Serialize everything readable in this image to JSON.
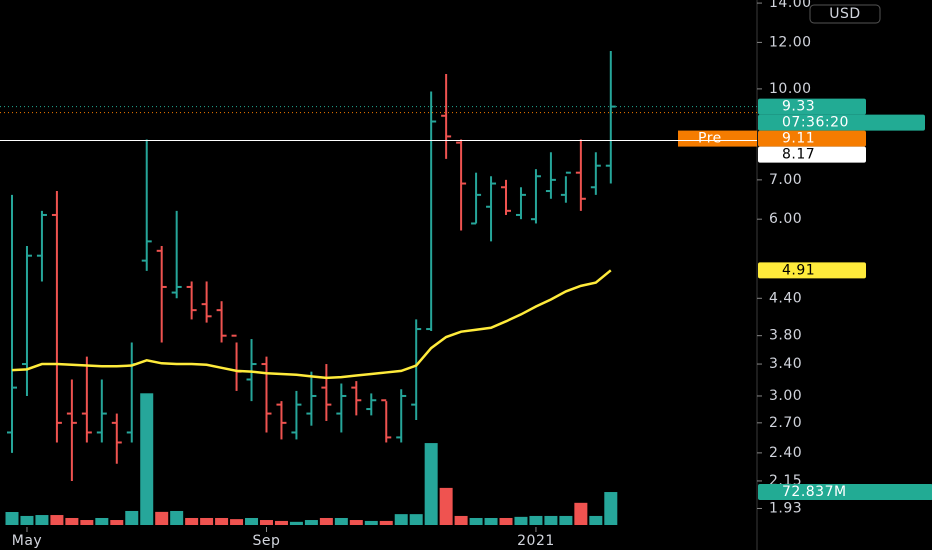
{
  "chart_data": {
    "type": "ohlc",
    "currency": "USD",
    "log_scale": true,
    "up_color": "#26a69a",
    "down_color": "#ef5350",
    "categories": [
      null,
      "May",
      null,
      null,
      null,
      null,
      null,
      null,
      null,
      null,
      null,
      null,
      null,
      null,
      null,
      null,
      null,
      "Sep",
      null,
      null,
      null,
      null,
      null,
      null,
      null,
      null,
      null,
      null,
      null,
      null,
      null,
      null,
      null,
      null,
      null,
      "2021",
      null,
      null,
      null,
      null,
      null
    ],
    "open": [
      2.6,
      3.4,
      5.2,
      6.1,
      2.8,
      2.8,
      2.6,
      2.7,
      2.6,
      5.1,
      5.3,
      4.5,
      4.6,
      4.3,
      4.2,
      3.8,
      3.2,
      3.4,
      2.9,
      2.6,
      2.8,
      3.1,
      2.8,
      3.1,
      2.85,
      2.95,
      2.55,
      2.9,
      3.9,
      9.0,
      8.1,
      5.9,
      6.3,
      6.8,
      6.1,
      6.0,
      6.7,
      6.6,
      7.2,
      6.8,
      7.4
    ],
    "high": [
      6.6,
      5.4,
      6.2,
      6.7,
      3.2,
      3.5,
      3.2,
      2.8,
      3.7,
      8.2,
      5.4,
      6.2,
      4.7,
      4.7,
      4.35,
      3.7,
      3.75,
      3.5,
      2.94,
      3.06,
      3.3,
      3.4,
      3.15,
      3.18,
      3.03,
      2.94,
      3.08,
      4.05,
      9.9,
      10.6,
      8.2,
      7.2,
      7.1,
      7.0,
      6.8,
      7.3,
      7.8,
      7.1,
      8.2,
      7.8,
      11.6
    ],
    "low": [
      2.4,
      3.0,
      4.7,
      2.5,
      2.15,
      2.5,
      2.5,
      2.3,
      2.5,
      4.9,
      3.7,
      4.4,
      4.05,
      4.0,
      3.7,
      3.06,
      2.94,
      2.6,
      2.53,
      2.53,
      2.67,
      2.72,
      2.6,
      2.78,
      2.78,
      2.5,
      2.5,
      2.73,
      3.87,
      7.6,
      5.74,
      5.9,
      5.5,
      6.1,
      6.0,
      5.9,
      6.5,
      6.4,
      6.2,
      6.6,
      6.9
    ],
    "close": [
      3.1,
      5.2,
      6.1,
      2.7,
      2.7,
      2.6,
      2.8,
      2.5,
      3.4,
      5.5,
      4.6,
      4.6,
      4.2,
      4.1,
      3.8,
      3.3,
      3.4,
      2.8,
      2.7,
      2.9,
      3.0,
      2.9,
      3.0,
      2.95,
      2.95,
      2.55,
      3.0,
      3.9,
      8.8,
      8.3,
      6.9,
      6.6,
      6.9,
      6.2,
      6.6,
      7.1,
      7.0,
      7.2,
      6.5,
      7.4,
      9.33
    ],
    "moving_average": {
      "color": "#ffeb3b",
      "values": [
        3.32,
        3.33,
        3.4,
        3.4,
        3.39,
        3.38,
        3.37,
        3.37,
        3.38,
        3.45,
        3.41,
        3.4,
        3.4,
        3.39,
        3.35,
        3.31,
        3.3,
        3.28,
        3.27,
        3.26,
        3.24,
        3.22,
        3.23,
        3.25,
        3.27,
        3.29,
        3.31,
        3.38,
        3.62,
        3.78,
        3.86,
        3.89,
        3.92,
        4.02,
        4.13,
        4.26,
        4.38,
        4.52,
        4.62,
        4.68,
        4.91
      ]
    },
    "volume": {
      "values": [
        28.7,
        20,
        22,
        22,
        15.5,
        11,
        15.5,
        11,
        31,
        291,
        29,
        31,
        15.5,
        15.5,
        15.5,
        13,
        15.5,
        11,
        9,
        7,
        11,
        15.5,
        15.5,
        11,
        9,
        9,
        24,
        24,
        181,
        82,
        20,
        15.5,
        15.5,
        15.5,
        18,
        20,
        20,
        20,
        49,
        20,
        72.837
      ]
    },
    "volume_ylim": [
      0,
      1160
    ],
    "ylim": [
      1.64,
      14.17
    ],
    "yticks": [
      {
        "value": 14,
        "label": "14.00"
      },
      {
        "value": 12,
        "label": "12.00"
      },
      {
        "value": 10,
        "label": "10.00"
      },
      {
        "value": 7,
        "label": "7.00"
      },
      {
        "value": 6,
        "label": "6.00"
      },
      {
        "value": 4.4,
        "label": "4.40"
      },
      {
        "value": 3.8,
        "label": "3.80"
      },
      {
        "value": 3.4,
        "label": "3.40"
      },
      {
        "value": 3,
        "label": "3.00"
      },
      {
        "value": 2.7,
        "label": "2.70"
      },
      {
        "value": 2.4,
        "label": "2.40"
      },
      {
        "value": 2.15,
        "label": "2.15"
      },
      {
        "value": 1.93,
        "label": "1.93"
      }
    ],
    "tags": [
      {
        "value": 9.33,
        "label": "9.33",
        "color": "#22ab94",
        "text_color": "#ffffff",
        "line": "dotted",
        "countdown": "07:36:20"
      },
      {
        "value": 9.11,
        "label": "9.11",
        "prefix": "Pre",
        "color": "#f57c00",
        "text_color": "#ffffff",
        "line": "dotted"
      },
      {
        "value": 8.17,
        "label": "8.17",
        "color": "#ffffff",
        "text_color": "#000000",
        "line": "solid"
      },
      {
        "value": 4.91,
        "label": "4.91",
        "color": "#ffeb3b",
        "text_color": "#000000"
      },
      {
        "value": 72.837,
        "label": "72.837M",
        "color": "#22ab94",
        "text_color": "#ffffff",
        "axis": "volume"
      }
    ]
  }
}
